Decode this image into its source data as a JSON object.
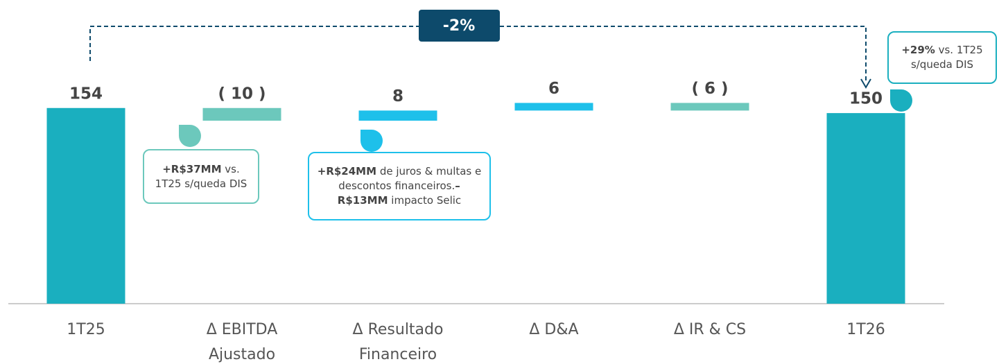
{
  "chart_data": {
    "type": "waterfall",
    "categories": [
      "1T25",
      "Δ EBITDA Ajustado",
      "Δ Resultado Financeiro",
      "Δ D&A",
      "Δ IR & CS",
      "1T26"
    ],
    "values": [
      154,
      -10,
      8,
      6,
      -6,
      150
    ],
    "value_labels": [
      "154",
      "( 10 )",
      "8",
      "6",
      "( 6 )",
      "150"
    ],
    "kinds": [
      "total",
      "delta",
      "delta",
      "delta",
      "delta",
      "total"
    ],
    "colors": {
      "total": "#1aafbf",
      "negative": "#6cc8bc",
      "positive": "#1ec0ea"
    },
    "ylim": [
      0,
      239
    ],
    "change_label": "-2%",
    "callouts": [
      {
        "color": "#6cc8bc",
        "parts": [
          {
            "text": "+R$37MM",
            "bold": true
          },
          {
            "text": " vs. 1T25 s/queda DIS",
            "bold": false
          }
        ]
      },
      {
        "color": "#1ec0ea",
        "parts": [
          {
            "text": "+R$24MM",
            "bold": true
          },
          {
            "text": " de juros & multas e descontos financeiros.",
            "bold": false
          },
          {
            "text": "–R$13MM",
            "bold": true
          },
          {
            "text": " impacto Selic",
            "bold": false
          }
        ]
      },
      {
        "color": "#1aafbf",
        "parts": [
          {
            "text": "+29%",
            "bold": true
          },
          {
            "text": " vs. 1T25 s/queda DIS",
            "bold": false
          }
        ]
      }
    ]
  }
}
